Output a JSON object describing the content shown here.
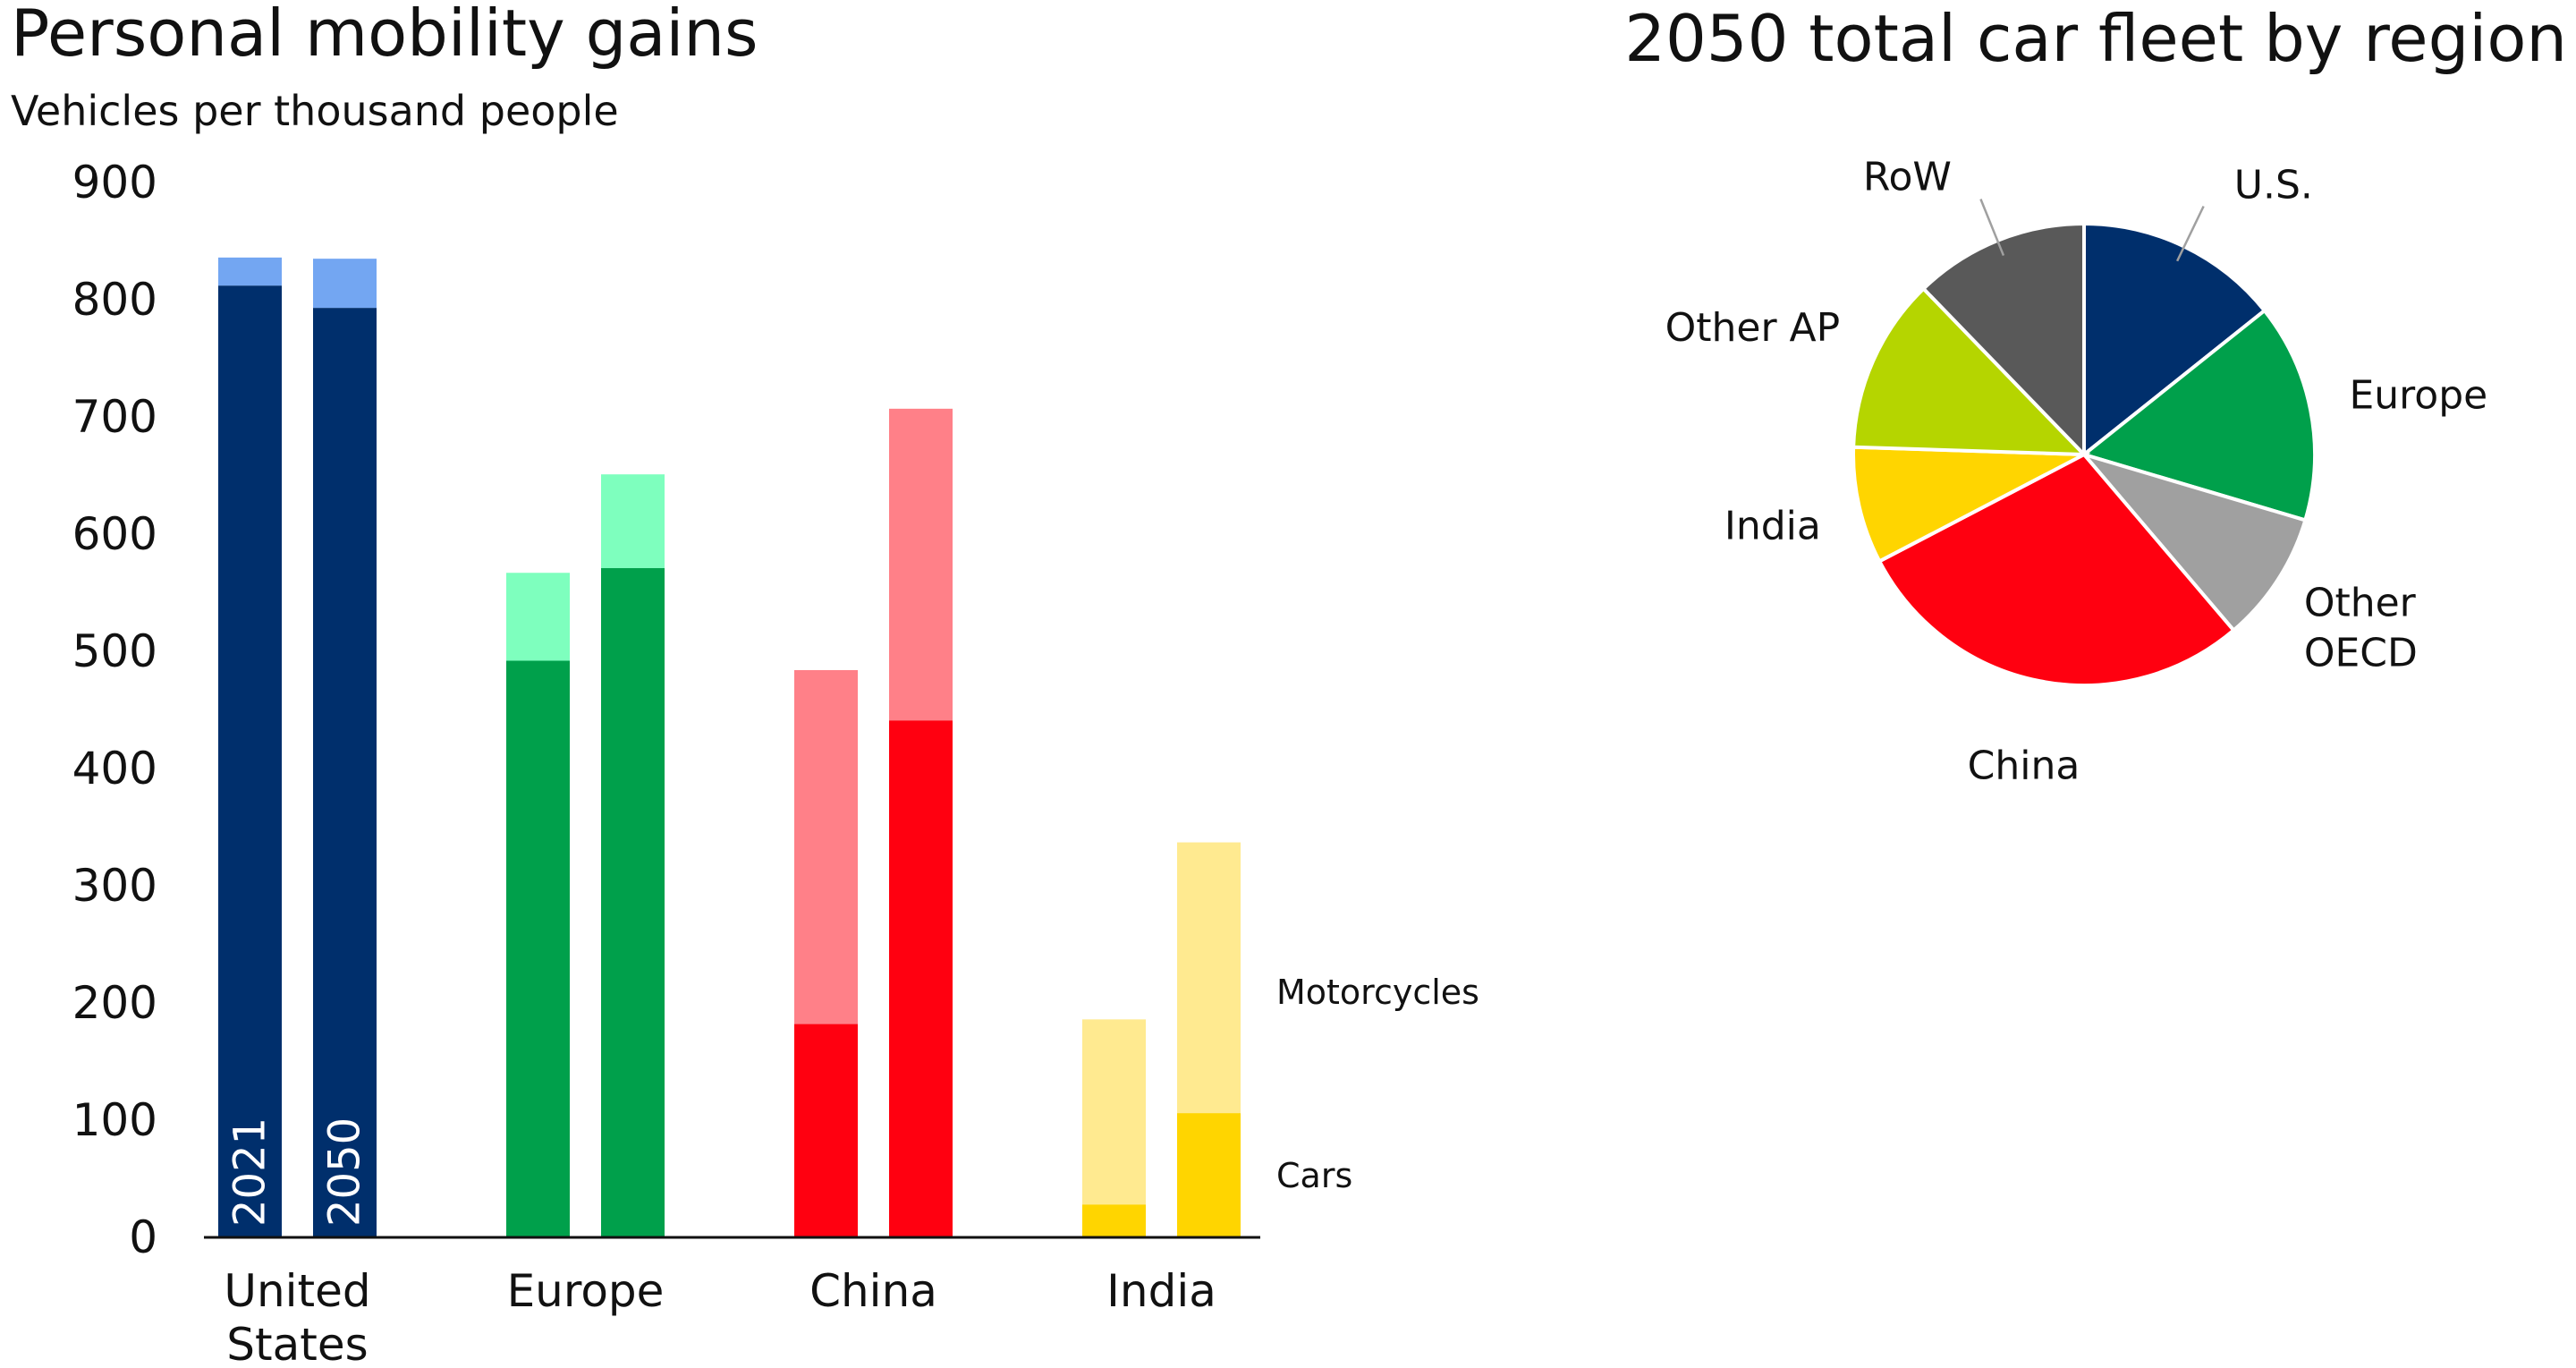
{
  "chart_data": [
    {
      "type": "bar",
      "title": "Personal mobility gains",
      "subtitle": "Vehicles per thousand people",
      "xlabel": "",
      "ylabel": "",
      "ylim": [
        0,
        900
      ],
      "yticks": [
        "900",
        "800",
        "700",
        "600",
        "500",
        "400",
        "300",
        "200",
        "100",
        "0"
      ],
      "categories": [
        {
          "label_lines": [
            "United",
            "States"
          ],
          "bars": [
            {
              "year": "2021",
              "cars": 812,
              "motorcycles": 24
            },
            {
              "year": "2050",
              "cars": 793,
              "motorcycles": 42
            }
          ],
          "car_color": "#002f6c",
          "moto_color": "#73a6f2"
        },
        {
          "label_lines": [
            "Europe"
          ],
          "bars": [
            {
              "year": "2021",
              "cars": 492,
              "motorcycles": 75
            },
            {
              "year": "2050",
              "cars": 571,
              "motorcycles": 80
            }
          ],
          "car_color": "#00a04b",
          "moto_color": "#7effbe"
        },
        {
          "label_lines": [
            "China"
          ],
          "bars": [
            {
              "year": "2021",
              "cars": 182,
              "motorcycles": 302
            },
            {
              "year": "2050",
              "cars": 441,
              "motorcycles": 266
            }
          ],
          "car_color": "#ff0010",
          "moto_color": "#ff8088"
        },
        {
          "label_lines": [
            "India"
          ],
          "bars": [
            {
              "year": "2021",
              "cars": 28,
              "motorcycles": 158
            },
            {
              "year": "2050",
              "cars": 106,
              "motorcycles": 231
            }
          ],
          "car_color": "#ffd500",
          "moto_color": "#ffea90"
        }
      ],
      "year_labels": [
        "2021",
        "2050"
      ],
      "series": [
        {
          "name": "Motorcycles"
        },
        {
          "name": "Cars"
        }
      ]
    },
    {
      "type": "pie",
      "title": "2050 total car fleet by region",
      "slices": [
        {
          "label": "U.S.",
          "value": 14,
          "color": "#002f6c"
        },
        {
          "label": "Europe",
          "value": 15,
          "color": "#00a04b"
        },
        {
          "label": "Other\nOECD",
          "value": 9,
          "color": "#a0a0a0"
        },
        {
          "label": "China",
          "value": 28,
          "color": "#ff0010"
        },
        {
          "label": "India",
          "value": 8,
          "color": "#ffd500"
        },
        {
          "label": "Other AP",
          "value": 12,
          "color": "#b5d500"
        },
        {
          "label": "RoW",
          "value": 12,
          "color": "#595959"
        }
      ]
    }
  ]
}
